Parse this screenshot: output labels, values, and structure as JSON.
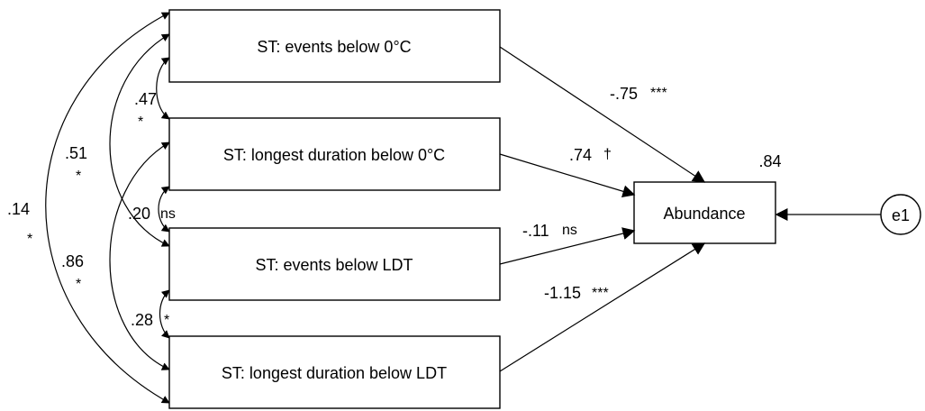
{
  "predictors": [
    {
      "label": "ST: events below 0°C"
    },
    {
      "label": "ST: longest duration below 0°C"
    },
    {
      "label": "ST: events below LDT"
    },
    {
      "label": "ST: longest duration below LDT"
    }
  ],
  "outcome": {
    "label": "Abundance",
    "r_squared": ".84"
  },
  "error_term": {
    "label": "e1"
  },
  "paths": [
    {
      "from": "ST: events below 0°C",
      "coef": "-.75",
      "sig": "***"
    },
    {
      "from": "ST: longest duration below 0°C",
      "coef": ".74",
      "sig": "†"
    },
    {
      "from": "ST: events below LDT",
      "coef": "-.11",
      "sig": "ns"
    },
    {
      "from": "ST: longest duration below LDT",
      "coef": "-1.15",
      "sig": "***"
    }
  ],
  "covariances": [
    {
      "pair": "0°C events – 0°C duration",
      "coef": ".47",
      "sig": "*"
    },
    {
      "pair": "0°C duration – LDT events",
      "coef": ".20",
      "sig": "ns"
    },
    {
      "pair": "LDT events – LDT duration",
      "coef": ".28",
      "sig": "*"
    },
    {
      "pair": "0°C events – LDT events",
      "coef": ".51",
      "sig": "*"
    },
    {
      "pair": "0°C duration – LDT duration",
      "coef": ".86",
      "sig": "*"
    },
    {
      "pair": "0°C events – LDT duration",
      "coef": ".14",
      "sig": "*"
    }
  ]
}
